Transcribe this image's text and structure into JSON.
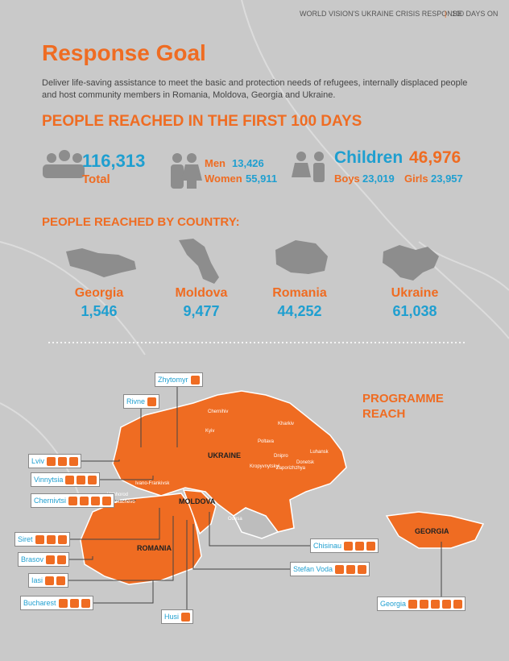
{
  "header": {
    "report": "WORLD VISION'S UKRAINE CRISIS RESPONSE",
    "period": "100 DAYS ON"
  },
  "title": "Response Goal",
  "description": "Deliver life-saving assistance to meet the basic and protection needs of refugees, internally displaced people and host community members in Romania, Moldova, Georgia and Ukraine.",
  "reached": {
    "heading": "PEOPLE REACHED IN THE FIRST 100 DAYS",
    "total": {
      "value": "116,313",
      "label": "Total"
    },
    "adults": {
      "men_label": "Men",
      "men": "13,426",
      "women_label": "Women",
      "women": "55,911"
    },
    "children": {
      "label": "Children",
      "value": "46,976",
      "boys_label": "Boys",
      "boys": "23,019",
      "girls_label": "Girls",
      "girls": "23,957"
    }
  },
  "by_country": {
    "heading": "PEOPLE REACHED BY COUNTRY:",
    "countries": [
      {
        "name": "Georgia",
        "value": "1,546"
      },
      {
        "name": "Moldova",
        "value": "9,477"
      },
      {
        "name": "Romania",
        "value": "44,252"
      },
      {
        "name": "Ukraine",
        "value": "61,038"
      }
    ]
  },
  "map": {
    "heading": "PROGRAMME REACH",
    "country_labels": [
      "UKRAINE",
      "MOLDOVA",
      "ROMANIA",
      "GEORGIA"
    ],
    "cities": [
      "Chernihiv",
      "Kharkiv",
      "Kyiv",
      "Poltava",
      "Dnipro",
      "Luhansk",
      "Donetsk",
      "Kropyvnytskyi",
      "Zaporizhzhya",
      "Ivano-Frankivsk",
      "Uzhhorod",
      "Mukachevo",
      "Odesa"
    ],
    "locations": [
      "Zhytomyr",
      "Rivne",
      "Lviv",
      "Vinnytsia",
      "Chernivtsi",
      "Siret",
      "Brasov",
      "Iasi",
      "Bucharest",
      "Husi",
      "Stefan Voda",
      "Chisinau",
      "Georgia"
    ]
  }
}
